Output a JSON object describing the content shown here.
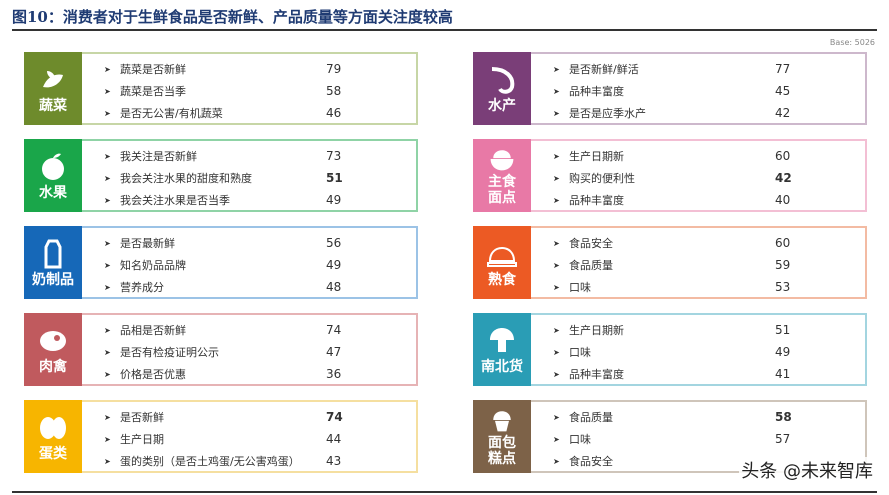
{
  "title": "图10：消费者对于生鲜食品是否新鲜、产品质量等方面关注度较高",
  "base": "Base: 5026",
  "watermark": "头条 @未来智库",
  "cards": [
    {
      "category": "蔬菜",
      "icon": "vegetable-icon",
      "color": "#6e8b2c",
      "border": "#c7d6a6",
      "items": [
        {
          "label": "蔬菜是否新鲜",
          "value": "79"
        },
        {
          "label": "蔬菜是否当季",
          "value": "58"
        },
        {
          "label": "是否无公害/有机蔬菜",
          "value": "46"
        }
      ]
    },
    {
      "category": "水果",
      "icon": "fruit-icon",
      "color": "#1aa64a",
      "border": "#8fd3a6",
      "items": [
        {
          "label": "我关注是否新鲜",
          "value": "73"
        },
        {
          "label": "我会关注水果的甜度和熟度",
          "value": "51",
          "bold": true
        },
        {
          "label": "我会关注水果是否当季",
          "value": "49"
        }
      ]
    },
    {
      "category": "奶制品",
      "icon": "milk-carton-icon",
      "color": "#1668b8",
      "border": "#9cc3e6",
      "items": [
        {
          "label": "是否最新鲜",
          "value": "56"
        },
        {
          "label": "知名奶品品牌",
          "value": "49"
        },
        {
          "label": "营养成分",
          "value": "48"
        }
      ]
    },
    {
      "category": "肉禽",
      "icon": "meat-icon",
      "color": "#c05a5e",
      "border": "#e6b3b5",
      "items": [
        {
          "label": "品相是否新鲜",
          "value": "74"
        },
        {
          "label": "是否有检疫证明公示",
          "value": "47"
        },
        {
          "label": "价格是否优惠",
          "value": "36"
        }
      ]
    },
    {
      "category": "蛋类",
      "icon": "egg-icon",
      "color": "#f7b500",
      "border": "#f5dfa0",
      "items": [
        {
          "label": "是否新鲜",
          "value": "74",
          "bold": true
        },
        {
          "label": "生产日期",
          "value": "44"
        },
        {
          "label": "蛋的类别（是否土鸡蛋/无公害鸡蛋）",
          "value": "43"
        }
      ]
    },
    {
      "category": "水产",
      "icon": "shrimp-icon",
      "color": "#7a3e78",
      "border": "#cdb8cc",
      "items": [
        {
          "label": "是否新鲜/鲜活",
          "value": "77"
        },
        {
          "label": "品种丰富度",
          "value": "45"
        },
        {
          "label": "是否是应季水产",
          "value": "42"
        }
      ]
    },
    {
      "category": "主食面点",
      "icon": "rice-bowl-icon",
      "color": "#e879a6",
      "border": "#f3bfd4",
      "items": [
        {
          "label": "生产日期新",
          "value": "60"
        },
        {
          "label": "购买的便利性",
          "value": "42",
          "bold": true
        },
        {
          "label": "品种丰富度",
          "value": "40"
        }
      ]
    },
    {
      "category": "熟食",
      "icon": "cloche-icon",
      "color": "#ec5a24",
      "border": "#f3bba3",
      "items": [
        {
          "label": "食品安全",
          "value": "60"
        },
        {
          "label": "食品质量",
          "value": "59"
        },
        {
          "label": "口味",
          "value": "53"
        }
      ]
    },
    {
      "category": "南北货",
      "icon": "mushroom-icon",
      "color": "#2a9db5",
      "border": "#a3d5e0",
      "items": [
        {
          "label": "生产日期新",
          "value": "51"
        },
        {
          "label": "口味",
          "value": "49"
        },
        {
          "label": "品种丰富度",
          "value": "41"
        }
      ]
    },
    {
      "category": "面包糕点",
      "icon": "cupcake-icon",
      "color": "#7d6248",
      "border": "#cfc5ba",
      "items": [
        {
          "label": "食品质量",
          "value": "58",
          "bold": true
        },
        {
          "label": "口味",
          "value": "57"
        },
        {
          "label": "食品安全",
          "value": ""
        }
      ]
    }
  ]
}
